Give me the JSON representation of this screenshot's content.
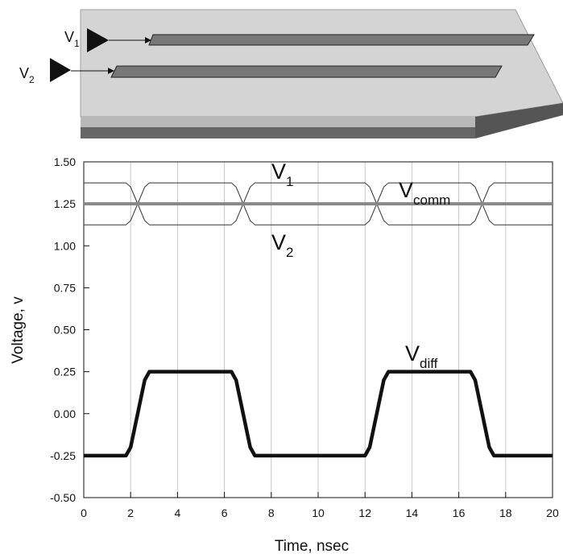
{
  "diagram": {
    "inputs": [
      [
        "V",
        "1"
      ],
      [
        "V",
        "2"
      ]
    ]
  },
  "chart_data": {
    "type": "line",
    "xlabel": "Time, nsec",
    "ylabel": "Voltage, v",
    "xlim": [
      0,
      20
    ],
    "xticks": [
      0,
      2,
      4,
      6,
      8,
      10,
      12,
      14,
      16,
      18,
      20
    ],
    "ylim": [
      -0.5,
      1.5
    ],
    "yticks": [
      {
        "value": 1.5,
        "label": "1.50"
      },
      {
        "value": 1.25,
        "label": "1.25"
      },
      {
        "value": 1.0,
        "label": "1.00"
      },
      {
        "value": 0.75,
        "label": "0.75"
      },
      {
        "value": 0.5,
        "label": "0.50"
      },
      {
        "value": 0.25,
        "label": "0.25"
      },
      {
        "value": 0.0,
        "label": "0.00"
      },
      {
        "value": -0.25,
        "label": "-0.25"
      },
      {
        "value": -0.5,
        "label": "-0.50"
      }
    ],
    "grid": "x",
    "x": [
      0,
      1.8,
      2.0,
      2.3,
      2.6,
      2.8,
      6.3,
      6.5,
      6.8,
      7.1,
      7.3,
      12.0,
      12.2,
      12.5,
      12.8,
      13.0,
      16.5,
      16.7,
      17.0,
      17.3,
      17.5,
      20
    ],
    "series": [
      {
        "label": [
          "V",
          "1"
        ],
        "color": "#333333",
        "width": 1,
        "values": [
          1.125,
          1.125,
          1.15,
          1.25,
          1.35,
          1.375,
          1.375,
          1.35,
          1.25,
          1.15,
          1.125,
          1.125,
          1.15,
          1.25,
          1.35,
          1.375,
          1.375,
          1.35,
          1.25,
          1.15,
          1.125,
          1.125
        ]
      },
      {
        "label": [
          "V",
          "2"
        ],
        "color": "#333333",
        "width": 1,
        "values": [
          1.375,
          1.375,
          1.35,
          1.25,
          1.15,
          1.125,
          1.125,
          1.15,
          1.25,
          1.35,
          1.375,
          1.375,
          1.35,
          1.25,
          1.15,
          1.125,
          1.125,
          1.15,
          1.25,
          1.35,
          1.375,
          1.375
        ]
      },
      {
        "label": [
          "V",
          "comm"
        ],
        "color": "#888888",
        "width": 4,
        "values": [
          1.25,
          1.25,
          1.25,
          1.25,
          1.25,
          1.25,
          1.25,
          1.25,
          1.25,
          1.25,
          1.25,
          1.25,
          1.25,
          1.25,
          1.25,
          1.25,
          1.25,
          1.25,
          1.25,
          1.25,
          1.25,
          1.25
        ]
      },
      {
        "label": [
          "V",
          "diff"
        ],
        "color": "#111111",
        "width": 4.5,
        "values": [
          -0.25,
          -0.25,
          -0.2,
          0,
          0.2,
          0.25,
          0.25,
          0.2,
          0,
          -0.2,
          -0.25,
          -0.25,
          -0.2,
          0,
          0.2,
          0.25,
          0.25,
          0.2,
          0,
          -0.2,
          -0.25,
          -0.25
        ]
      }
    ]
  }
}
